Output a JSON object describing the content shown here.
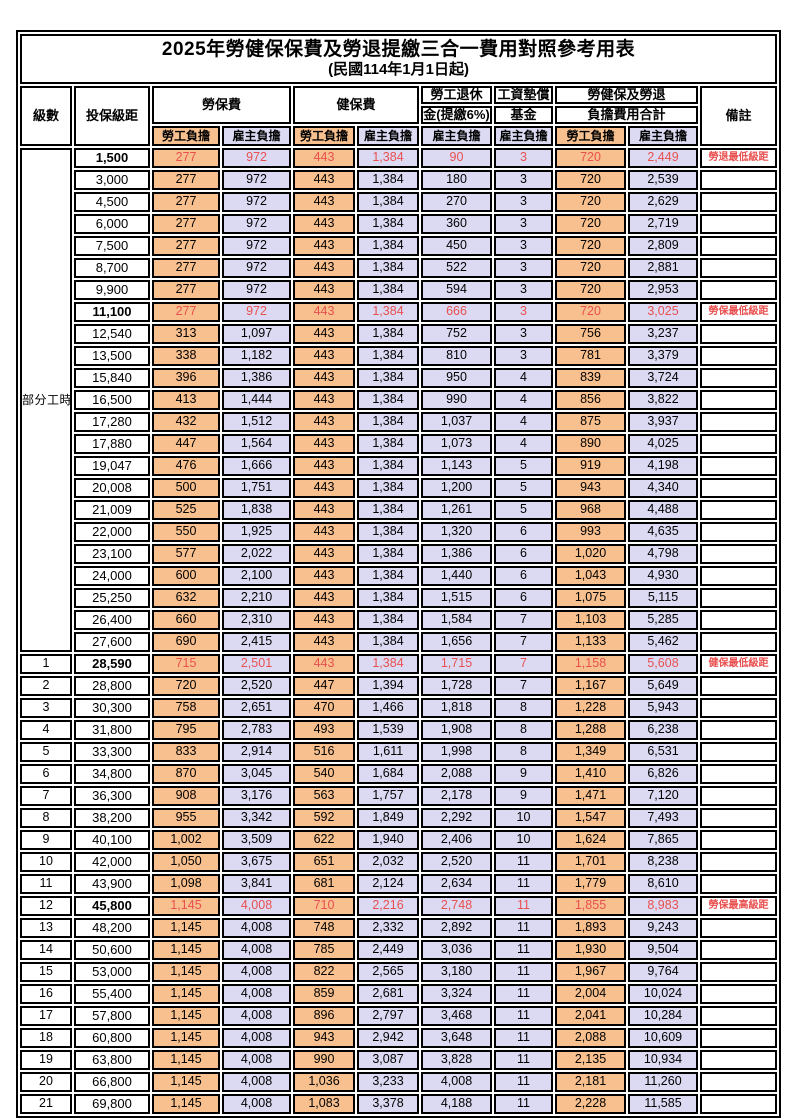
{
  "title": "2025年勞健保保費及勞退提繳三合一費用對照參考用表",
  "subtitle": "(民國114年1月1日起)",
  "colors": {
    "employee_fill": "#F8C08E",
    "employer_fill": "#DCDAF3",
    "highlight_text": "#E8504F",
    "border": "#000000"
  },
  "header": {
    "level": "級數",
    "bracket": "投保級距",
    "labor_ins": "勞保費",
    "health_ins": "健保費",
    "pension_line1": "勞工退休",
    "pension_line2": "金(提繳6%)",
    "wage_fund_line1": "工資墊償",
    "wage_fund_line2": "基金",
    "total_line1": "勞健保及勞退",
    "total_line2": "負擔費用合計",
    "note": "備註",
    "employee": "勞工負擔",
    "employer": "雇主負擔"
  },
  "table": {
    "part_time_label": "部分工時",
    "value_columns": [
      "勞保費-勞工負擔",
      "勞保費-雇主負擔",
      "健保費-勞工負擔",
      "健保費-雇主負擔",
      "勞工退休金(提繳6%)-雇主負擔",
      "工資墊償基金-雇主負擔",
      "合計-勞工負擔",
      "合計-雇主負擔"
    ],
    "part_time_rows": [
      {
        "bracket": "1,500",
        "values": [
          "277",
          "972",
          "443",
          "1,384",
          "90",
          "3",
          "720",
          "2,449"
        ],
        "note": "勞退最低級距",
        "highlight": true
      },
      {
        "bracket": "3,000",
        "values": [
          "277",
          "972",
          "443",
          "1,384",
          "180",
          "3",
          "720",
          "2,539"
        ]
      },
      {
        "bracket": "4,500",
        "values": [
          "277",
          "972",
          "443",
          "1,384",
          "270",
          "3",
          "720",
          "2,629"
        ]
      },
      {
        "bracket": "6,000",
        "values": [
          "277",
          "972",
          "443",
          "1,384",
          "360",
          "3",
          "720",
          "2,719"
        ]
      },
      {
        "bracket": "7,500",
        "values": [
          "277",
          "972",
          "443",
          "1,384",
          "450",
          "3",
          "720",
          "2,809"
        ]
      },
      {
        "bracket": "8,700",
        "values": [
          "277",
          "972",
          "443",
          "1,384",
          "522",
          "3",
          "720",
          "2,881"
        ]
      },
      {
        "bracket": "9,900",
        "values": [
          "277",
          "972",
          "443",
          "1,384",
          "594",
          "3",
          "720",
          "2,953"
        ]
      },
      {
        "bracket": "11,100",
        "values": [
          "277",
          "972",
          "443",
          "1,384",
          "666",
          "3",
          "720",
          "3,025"
        ],
        "note": "勞保最低級距",
        "highlight": true
      },
      {
        "bracket": "12,540",
        "values": [
          "313",
          "1,097",
          "443",
          "1,384",
          "752",
          "3",
          "756",
          "3,237"
        ]
      },
      {
        "bracket": "13,500",
        "values": [
          "338",
          "1,182",
          "443",
          "1,384",
          "810",
          "3",
          "781",
          "3,379"
        ]
      },
      {
        "bracket": "15,840",
        "values": [
          "396",
          "1,386",
          "443",
          "1,384",
          "950",
          "4",
          "839",
          "3,724"
        ]
      },
      {
        "bracket": "16,500",
        "values": [
          "413",
          "1,444",
          "443",
          "1,384",
          "990",
          "4",
          "856",
          "3,822"
        ]
      },
      {
        "bracket": "17,280",
        "values": [
          "432",
          "1,512",
          "443",
          "1,384",
          "1,037",
          "4",
          "875",
          "3,937"
        ]
      },
      {
        "bracket": "17,880",
        "values": [
          "447",
          "1,564",
          "443",
          "1,384",
          "1,073",
          "4",
          "890",
          "4,025"
        ]
      },
      {
        "bracket": "19,047",
        "values": [
          "476",
          "1,666",
          "443",
          "1,384",
          "1,143",
          "5",
          "919",
          "4,198"
        ]
      },
      {
        "bracket": "20,008",
        "values": [
          "500",
          "1,751",
          "443",
          "1,384",
          "1,200",
          "5",
          "943",
          "4,340"
        ]
      },
      {
        "bracket": "21,009",
        "values": [
          "525",
          "1,838",
          "443",
          "1,384",
          "1,261",
          "5",
          "968",
          "4,488"
        ]
      },
      {
        "bracket": "22,000",
        "values": [
          "550",
          "1,925",
          "443",
          "1,384",
          "1,320",
          "6",
          "993",
          "4,635"
        ]
      },
      {
        "bracket": "23,100",
        "values": [
          "577",
          "2,022",
          "443",
          "1,384",
          "1,386",
          "6",
          "1,020",
          "4,798"
        ]
      },
      {
        "bracket": "24,000",
        "values": [
          "600",
          "2,100",
          "443",
          "1,384",
          "1,440",
          "6",
          "1,043",
          "4,930"
        ]
      },
      {
        "bracket": "25,250",
        "values": [
          "632",
          "2,210",
          "443",
          "1,384",
          "1,515",
          "6",
          "1,075",
          "5,115"
        ]
      },
      {
        "bracket": "26,400",
        "values": [
          "660",
          "2,310",
          "443",
          "1,384",
          "1,584",
          "7",
          "1,103",
          "5,285"
        ]
      },
      {
        "bracket": "27,600",
        "values": [
          "690",
          "2,415",
          "443",
          "1,384",
          "1,656",
          "7",
          "1,133",
          "5,462"
        ]
      }
    ],
    "level_rows": [
      {
        "level": "1",
        "bracket": "28,590",
        "values": [
          "715",
          "2,501",
          "443",
          "1,384",
          "1,715",
          "7",
          "1,158",
          "5,608"
        ],
        "note": "健保最低級距",
        "highlight": true
      },
      {
        "level": "2",
        "bracket": "28,800",
        "values": [
          "720",
          "2,520",
          "447",
          "1,394",
          "1,728",
          "7",
          "1,167",
          "5,649"
        ]
      },
      {
        "level": "3",
        "bracket": "30,300",
        "values": [
          "758",
          "2,651",
          "470",
          "1,466",
          "1,818",
          "8",
          "1,228",
          "5,943"
        ]
      },
      {
        "level": "4",
        "bracket": "31,800",
        "values": [
          "795",
          "2,783",
          "493",
          "1,539",
          "1,908",
          "8",
          "1,288",
          "6,238"
        ]
      },
      {
        "level": "5",
        "bracket": "33,300",
        "values": [
          "833",
          "2,914",
          "516",
          "1,611",
          "1,998",
          "8",
          "1,349",
          "6,531"
        ]
      },
      {
        "level": "6",
        "bracket": "34,800",
        "values": [
          "870",
          "3,045",
          "540",
          "1,684",
          "2,088",
          "9",
          "1,410",
          "6,826"
        ]
      },
      {
        "level": "7",
        "bracket": "36,300",
        "values": [
          "908",
          "3,176",
          "563",
          "1,757",
          "2,178",
          "9",
          "1,471",
          "7,120"
        ]
      },
      {
        "level": "8",
        "bracket": "38,200",
        "values": [
          "955",
          "3,342",
          "592",
          "1,849",
          "2,292",
          "10",
          "1,547",
          "7,493"
        ]
      },
      {
        "level": "9",
        "bracket": "40,100",
        "values": [
          "1,002",
          "3,509",
          "622",
          "1,940",
          "2,406",
          "10",
          "1,624",
          "7,865"
        ]
      },
      {
        "level": "10",
        "bracket": "42,000",
        "values": [
          "1,050",
          "3,675",
          "651",
          "2,032",
          "2,520",
          "11",
          "1,701",
          "8,238"
        ]
      },
      {
        "level": "11",
        "bracket": "43,900",
        "values": [
          "1,098",
          "3,841",
          "681",
          "2,124",
          "2,634",
          "11",
          "1,779",
          "8,610"
        ]
      },
      {
        "level": "12",
        "bracket": "45,800",
        "values": [
          "1,145",
          "4,008",
          "710",
          "2,216",
          "2,748",
          "11",
          "1,855",
          "8,983"
        ],
        "note": "勞保最高級距",
        "highlight": true
      },
      {
        "level": "13",
        "bracket": "48,200",
        "values": [
          "1,145",
          "4,008",
          "748",
          "2,332",
          "2,892",
          "11",
          "1,893",
          "9,243"
        ]
      },
      {
        "level": "14",
        "bracket": "50,600",
        "values": [
          "1,145",
          "4,008",
          "785",
          "2,449",
          "3,036",
          "11",
          "1,930",
          "9,504"
        ]
      },
      {
        "level": "15",
        "bracket": "53,000",
        "values": [
          "1,145",
          "4,008",
          "822",
          "2,565",
          "3,180",
          "11",
          "1,967",
          "9,764"
        ]
      },
      {
        "level": "16",
        "bracket": "55,400",
        "values": [
          "1,145",
          "4,008",
          "859",
          "2,681",
          "3,324",
          "11",
          "2,004",
          "10,024"
        ]
      },
      {
        "level": "17",
        "bracket": "57,800",
        "values": [
          "1,145",
          "4,008",
          "896",
          "2,797",
          "3,468",
          "11",
          "2,041",
          "10,284"
        ]
      },
      {
        "level": "18",
        "bracket": "60,800",
        "values": [
          "1,145",
          "4,008",
          "943",
          "2,942",
          "3,648",
          "11",
          "2,088",
          "10,609"
        ]
      },
      {
        "level": "19",
        "bracket": "63,800",
        "values": [
          "1,145",
          "4,008",
          "990",
          "3,087",
          "3,828",
          "11",
          "2,135",
          "10,934"
        ]
      },
      {
        "level": "20",
        "bracket": "66,800",
        "values": [
          "1,145",
          "4,008",
          "1,036",
          "3,233",
          "4,008",
          "11",
          "2,181",
          "11,260"
        ]
      },
      {
        "level": "21",
        "bracket": "69,800",
        "values": [
          "1,145",
          "4,008",
          "1,083",
          "3,378",
          "4,188",
          "11",
          "2,228",
          "11,585"
        ]
      }
    ]
  }
}
